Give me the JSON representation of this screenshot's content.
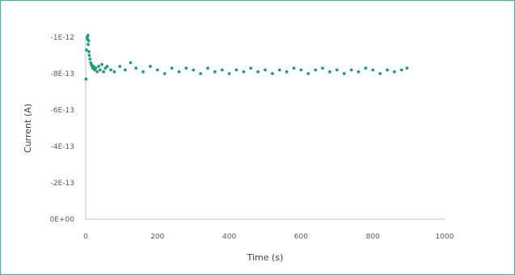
{
  "chart_data": {
    "type": "scatter",
    "title": "",
    "xlabel": "Time (s)",
    "ylabel": "Current (A)",
    "xlim": [
      0,
      1000
    ],
    "ylim": [
      0,
      -1e-12
    ],
    "x_ticks": [
      0,
      200,
      400,
      600,
      800,
      1000
    ],
    "x_tick_labels": [
      "0",
      "200",
      "400",
      "600",
      "800",
      "1000"
    ],
    "y_ticks": [
      0,
      -2e-13,
      -4e-13,
      -6e-13,
      -8e-13,
      -1e-12
    ],
    "y_tick_labels": [
      "0E+00",
      "-2E-13",
      "-4E-13",
      "-6E-13",
      "-8E-13",
      "-1E-12"
    ],
    "grid": false,
    "legend": "none",
    "marker_color": "#1a9e77",
    "series": [
      {
        "points": [
          [
            1,
            -7.7e-13
          ],
          [
            2,
            -9.3e-13
          ],
          [
            4,
            -1e-12
          ],
          [
            5,
            -9.9e-13
          ],
          [
            6,
            -1.01e-12
          ],
          [
            7,
            -9.6e-13
          ],
          [
            8,
            -9.8e-13
          ],
          [
            9,
            -9.2e-13
          ],
          [
            10,
            -9e-13
          ],
          [
            12,
            -8.8e-13
          ],
          [
            14,
            -8.6e-13
          ],
          [
            16,
            -8.5e-13
          ],
          [
            18,
            -8.4e-13
          ],
          [
            20,
            -8.3e-13
          ],
          [
            22,
            -8.4e-13
          ],
          [
            25,
            -8.2e-13
          ],
          [
            28,
            -8.3e-13
          ],
          [
            32,
            -8.1e-13
          ],
          [
            36,
            -8.4e-13
          ],
          [
            40,
            -8.2e-13
          ],
          [
            45,
            -8.5e-13
          ],
          [
            50,
            -8.1e-13
          ],
          [
            55,
            -8.3e-13
          ],
          [
            60,
            -8.4e-13
          ],
          [
            70,
            -8.2e-13
          ],
          [
            80,
            -8.1e-13
          ],
          [
            95,
            -8.4e-13
          ],
          [
            110,
            -8.2e-13
          ],
          [
            125,
            -8.6e-13
          ],
          [
            140,
            -8.3e-13
          ],
          [
            160,
            -8.1e-13
          ],
          [
            180,
            -8.4e-13
          ],
          [
            200,
            -8.2e-13
          ],
          [
            220,
            -8e-13
          ],
          [
            240,
            -8.3e-13
          ],
          [
            260,
            -8.1e-13
          ],
          [
            280,
            -8.3e-13
          ],
          [
            300,
            -8.2e-13
          ],
          [
            320,
            -8e-13
          ],
          [
            340,
            -8.3e-13
          ],
          [
            360,
            -8.1e-13
          ],
          [
            380,
            -8.2e-13
          ],
          [
            400,
            -8e-13
          ],
          [
            420,
            -8.2e-13
          ],
          [
            440,
            -8.1e-13
          ],
          [
            460,
            -8.3e-13
          ],
          [
            480,
            -8.1e-13
          ],
          [
            500,
            -8.2e-13
          ],
          [
            520,
            -8e-13
          ],
          [
            540,
            -8.2e-13
          ],
          [
            560,
            -8.1e-13
          ],
          [
            580,
            -8.3e-13
          ],
          [
            600,
            -8.2e-13
          ],
          [
            620,
            -8e-13
          ],
          [
            640,
            -8.2e-13
          ],
          [
            660,
            -8.3e-13
          ],
          [
            680,
            -8.1e-13
          ],
          [
            700,
            -8.2e-13
          ],
          [
            720,
            -8e-13
          ],
          [
            740,
            -8.2e-13
          ],
          [
            760,
            -8.1e-13
          ],
          [
            780,
            -8.3e-13
          ],
          [
            800,
            -8.2e-13
          ],
          [
            820,
            -8e-13
          ],
          [
            840,
            -8.2e-13
          ],
          [
            860,
            -8.1e-13
          ],
          [
            880,
            -8.2e-13
          ],
          [
            895,
            -8.3e-13
          ]
        ]
      }
    ]
  }
}
